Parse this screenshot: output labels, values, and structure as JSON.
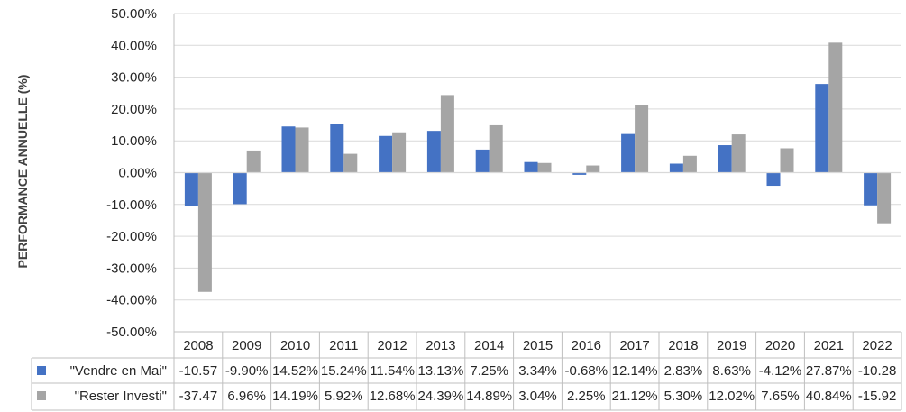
{
  "chart_data": {
    "type": "bar",
    "ylabel": "PERFORMANCE ANNUELLE (%)",
    "ylim": [
      -50,
      50
    ],
    "ytick_step": 10,
    "y_tick_labels": [
      "50.00%",
      "40.00%",
      "30.00%",
      "20.00%",
      "10.00%",
      "0.00%",
      "-10.00%",
      "-20.00%",
      "-30.00%",
      "-40.00%",
      "-50.00%"
    ],
    "categories": [
      "2008",
      "2009",
      "2010",
      "2011",
      "2012",
      "2013",
      "2014",
      "2015",
      "2016",
      "2017",
      "2018",
      "2019",
      "2020",
      "2021",
      "2022"
    ],
    "series": [
      {
        "name": "\"Vendre en Mai\"",
        "color": "#4472C4",
        "values": [
          -10.57,
          -9.9,
          14.52,
          15.24,
          11.54,
          13.13,
          7.25,
          3.34,
          -0.68,
          12.14,
          2.83,
          8.63,
          -4.12,
          27.87,
          -10.28
        ],
        "labels": [
          "-10.57",
          "-9.90%",
          "14.52%",
          "15.24%",
          "11.54%",
          "13.13%",
          "7.25%",
          "3.34%",
          "-0.68%",
          "12.14%",
          "2.83%",
          "8.63%",
          "-4.12%",
          "27.87%",
          "-10.28"
        ]
      },
      {
        "name": "\"Rester Investi\"",
        "color": "#A5A5A5",
        "values": [
          -37.47,
          6.96,
          14.19,
          5.92,
          12.68,
          24.39,
          14.89,
          3.04,
          2.25,
          21.12,
          5.3,
          12.02,
          7.65,
          40.84,
          -15.92
        ],
        "labels": [
          "-37.47",
          "6.96%",
          "14.19%",
          "5.92%",
          "12.68%",
          "24.39%",
          "14.89%",
          "3.04%",
          "2.25%",
          "21.12%",
          "5.30%",
          "12.02%",
          "7.65%",
          "40.84%",
          "-15.92"
        ]
      }
    ],
    "grid": true,
    "legend": "data-table"
  }
}
